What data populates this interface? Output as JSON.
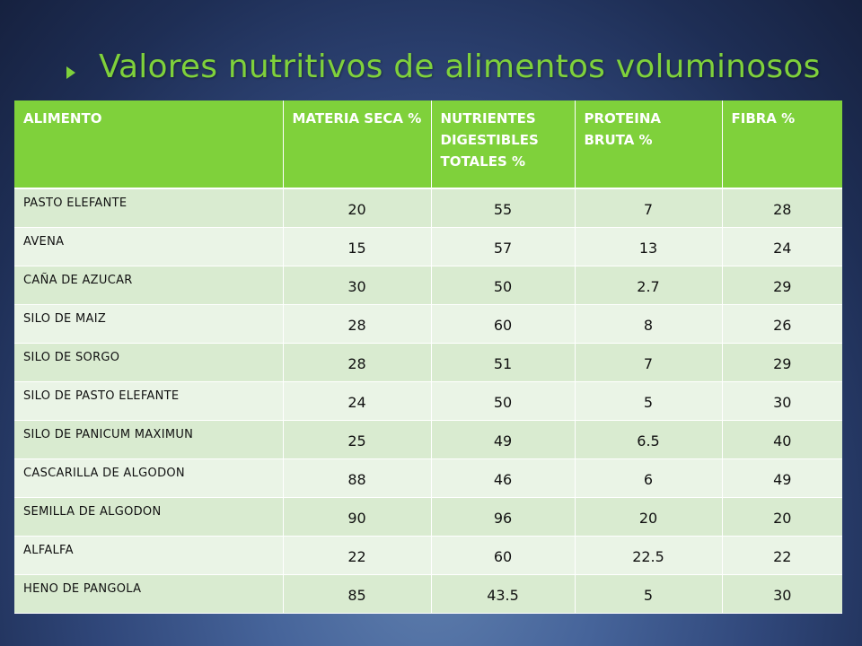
{
  "title": "Valores nutritivos de alimentos voluminosos",
  "colors": {
    "header": "#7fd13b",
    "row_dark": "#d9ebd0",
    "row_light": "#eaf4e6",
    "title": "#7fd13b",
    "background": "#30477a"
  },
  "table": {
    "headers": [
      "ALIMENTO",
      "MATERIA SECA %",
      "NUTRIENTES DIGESTIBLES TOTALES %",
      "PROTEINA BRUTA %",
      "FIBRA  %"
    ],
    "rows": [
      [
        "PASTO ELEFANTE",
        "20",
        "55",
        "7",
        "28"
      ],
      [
        "AVENA",
        "15",
        "57",
        "13",
        "24"
      ],
      [
        "CAÑA DE AZUCAR",
        "30",
        "50",
        "2.7",
        "29"
      ],
      [
        "SILO DE MAIZ",
        "28",
        "60",
        "8",
        "26"
      ],
      [
        "SILO DE SORGO",
        "28",
        "51",
        "7",
        "29"
      ],
      [
        "SILO DE PASTO ELEFANTE",
        "24",
        "50",
        "5",
        "30"
      ],
      [
        "SILO DE PANICUM MAXIMUN",
        "25",
        "49",
        "6.5",
        "40"
      ],
      [
        "CASCARILLA DE ALGODON",
        "88",
        "46",
        "6",
        "49"
      ],
      [
        "SEMILLA DE ALGODON",
        "90",
        "96",
        "20",
        "20"
      ],
      [
        "ALFALFA",
        "22",
        "60",
        "22.5",
        "22"
      ],
      [
        "HENO DE PANGOLA",
        "85",
        "43.5",
        "5",
        "30"
      ]
    ]
  }
}
